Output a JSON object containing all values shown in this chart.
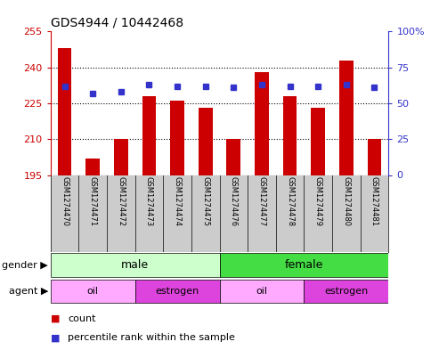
{
  "title": "GDS4944 / 10442468",
  "samples": [
    "GSM1274470",
    "GSM1274471",
    "GSM1274472",
    "GSM1274473",
    "GSM1274474",
    "GSM1274475",
    "GSM1274476",
    "GSM1274477",
    "GSM1274478",
    "GSM1274479",
    "GSM1274480",
    "GSM1274481"
  ],
  "counts": [
    248,
    202,
    210,
    228,
    226,
    223,
    210,
    238,
    228,
    223,
    243,
    210
  ],
  "percentiles": [
    62,
    57,
    58,
    63,
    62,
    62,
    61,
    63,
    62,
    62,
    63,
    61
  ],
  "ylim_left": [
    195,
    255
  ],
  "ylim_right": [
    0,
    100
  ],
  "yticks_left": [
    195,
    210,
    225,
    240,
    255
  ],
  "yticks_right": [
    0,
    25,
    50,
    75,
    100
  ],
  "ytick_right_labels": [
    "0",
    "25",
    "50",
    "75",
    "100%"
  ],
  "bar_color": "#cc0000",
  "dot_color": "#3333cc",
  "bar_width": 0.5,
  "gender_groups": [
    {
      "label": "male",
      "start": 0,
      "end": 6,
      "color": "#ccffcc"
    },
    {
      "label": "female",
      "start": 6,
      "end": 12,
      "color": "#44dd44"
    }
  ],
  "agent_groups": [
    {
      "label": "oil",
      "start": 0,
      "end": 3,
      "color": "#ffaaff"
    },
    {
      "label": "estrogen",
      "start": 3,
      "end": 6,
      "color": "#dd44dd"
    },
    {
      "label": "oil",
      "start": 6,
      "end": 9,
      "color": "#ffaaff"
    },
    {
      "label": "estrogen",
      "start": 9,
      "end": 12,
      "color": "#dd44dd"
    }
  ],
  "background_color": "#ffffff",
  "sample_bg_color": "#cccccc",
  "grid_yticks": [
    210,
    225,
    240
  ],
  "legend_items": [
    {
      "color": "#cc0000",
      "label": "count"
    },
    {
      "color": "#3333cc",
      "label": "percentile rank within the sample"
    }
  ]
}
